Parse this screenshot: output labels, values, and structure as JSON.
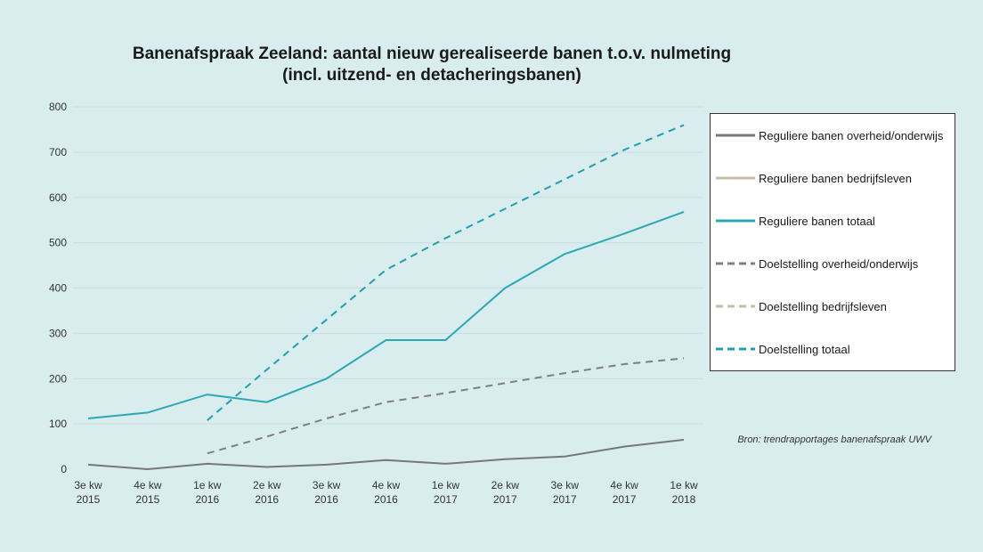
{
  "chart_data": {
    "type": "line",
    "title": "Banenafspraak Zeeland: aantal nieuw gerealiseerde banen t.o.v. nulmeting",
    "subtitle": "(incl.  uitzend- en detacheringsbanen)",
    "categories": [
      [
        "3e kw",
        "2015"
      ],
      [
        "4e kw",
        "2015"
      ],
      [
        "1e kw",
        "2016"
      ],
      [
        "2e kw",
        "2016"
      ],
      [
        "3e kw",
        "2016"
      ],
      [
        "4e kw",
        "2016"
      ],
      [
        "1e kw",
        "2017"
      ],
      [
        "2e kw",
        "2017"
      ],
      [
        "3e kw",
        "2017"
      ],
      [
        "4e kw",
        "2017"
      ],
      [
        "1e kw",
        "2018"
      ]
    ],
    "ylim": [
      0,
      800
    ],
    "yticks": [
      0,
      100,
      200,
      300,
      400,
      500,
      600,
      700,
      800
    ],
    "grid": true,
    "legend_position": "right",
    "series": [
      {
        "name": "Reguliere banen overheid/onderwijs",
        "color": "#777777",
        "dashed": false,
        "values": [
          10,
          0,
          12,
          5,
          10,
          20,
          12,
          22,
          28,
          50,
          65
        ]
      },
      {
        "name": "Reguliere banen bedrijfsleven",
        "color": "#c4c0a8",
        "dashed": false,
        "values": [
          null,
          null,
          null,
          null,
          null,
          null,
          null,
          null,
          null,
          null,
          null
        ]
      },
      {
        "name": "Reguliere banen totaal",
        "color": "#2aa8b6",
        "dashed": false,
        "values": [
          112,
          125,
          165,
          148,
          200,
          285,
          285,
          400,
          475,
          520,
          568
        ]
      },
      {
        "name": "Doelstelling overheid/onderwijs",
        "color": "#7f7f7f",
        "dashed": true,
        "values": [
          null,
          null,
          35,
          72,
          112,
          148,
          168,
          190,
          212,
          232,
          245
        ]
      },
      {
        "name": "Doelstelling bedrijfsleven",
        "color": "#c4c0a8",
        "dashed": true,
        "values": [
          null,
          null,
          null,
          null,
          null,
          null,
          null,
          null,
          null,
          null,
          null
        ]
      },
      {
        "name": "Doelstelling totaal",
        "color": "#1f9fb0",
        "dashed": true,
        "values": [
          null,
          null,
          108,
          220,
          330,
          440,
          510,
          575,
          640,
          705,
          760
        ]
      }
    ]
  },
  "source": "Bron: trendrapportages banenafspraak UWV"
}
